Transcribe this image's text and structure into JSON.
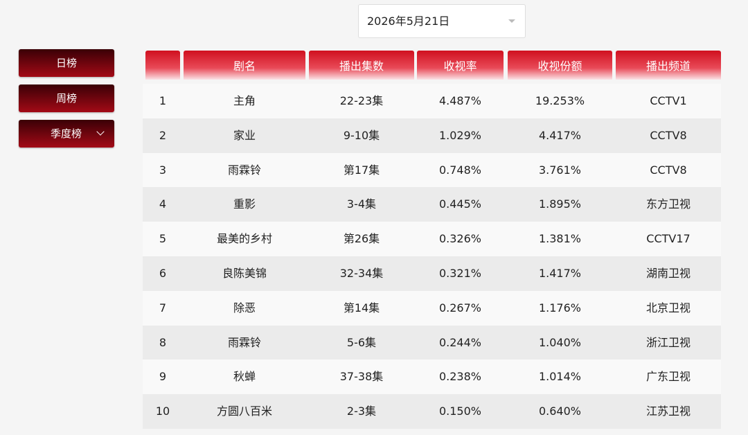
{
  "date_picker": {
    "value": "2026年5月21日"
  },
  "sidebar": {
    "buttons": [
      "日榜",
      "周榜",
      "季度榜"
    ]
  },
  "table": {
    "headers": [
      "剧名",
      "播出集数",
      "收视率",
      "收视份额",
      "播出频道"
    ],
    "rows": [
      [
        1,
        "主角",
        "22-23集",
        "4.487%",
        "19.253%",
        "CCTV1"
      ],
      [
        2,
        "家业",
        "9-10集",
        "1.029%",
        "4.417%",
        "CCTV8"
      ],
      [
        3,
        "雨霖铃",
        "第17集",
        "0.748%",
        "3.761%",
        "CCTV8"
      ],
      [
        4,
        "重影",
        "3-4集",
        "0.445%",
        "1.895%",
        "东方卫视"
      ],
      [
        5,
        "最美的乡村",
        "第26集",
        "0.326%",
        "1.381%",
        "CCTV17"
      ],
      [
        6,
        "良陈美锦",
        "32-34集",
        "0.321%",
        "1.417%",
        "湖南卫视"
      ],
      [
        7,
        "除恶",
        "第14集",
        "0.267%",
        "1.176%",
        "北京卫视"
      ],
      [
        8,
        "雨霖铃",
        "5-6集",
        "0.244%",
        "1.040%",
        "浙江卫视"
      ],
      [
        9,
        "秋蝉",
        "37-38集",
        "0.238%",
        "1.014%",
        "广东卫视"
      ],
      [
        10,
        "方圆八百米",
        "2-3集",
        "0.150%",
        "0.640%",
        "江苏卫视"
      ]
    ]
  }
}
